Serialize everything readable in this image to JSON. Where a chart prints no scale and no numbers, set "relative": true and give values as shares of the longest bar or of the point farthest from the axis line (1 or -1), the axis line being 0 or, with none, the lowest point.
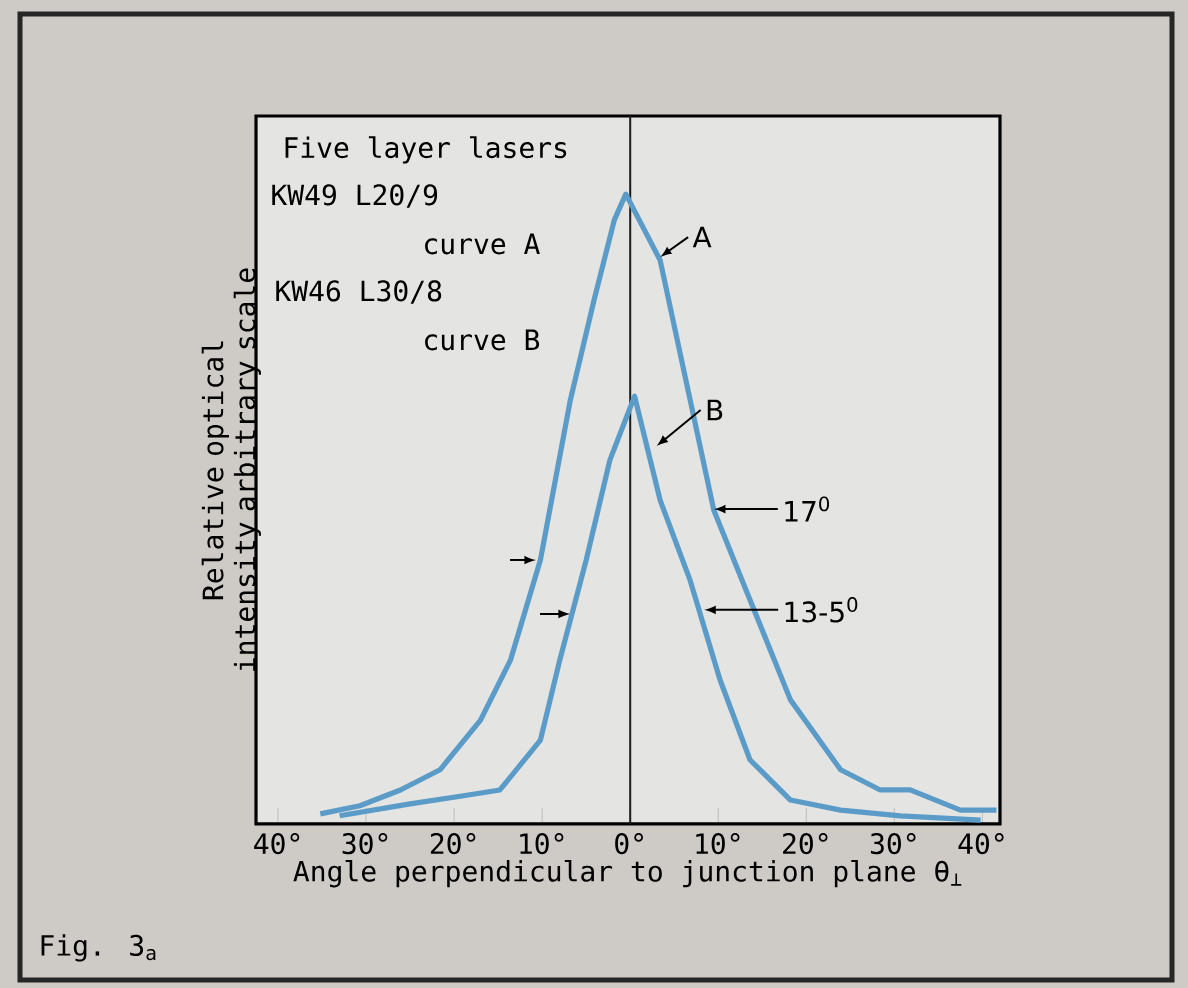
{
  "chart_data": {
    "type": "line",
    "relative": true,
    "ylabel": "Relative optical intensity arbitrary scale",
    "xlabel": "Angle perpendicular to junction plane θ$_{⊥}$",
    "xlim": [
      -42.5,
      42
    ],
    "xticks": [
      {
        "value": -40,
        "label": "40°"
      },
      {
        "value": -30,
        "label": "30°"
      },
      {
        "value": -20,
        "label": "20°"
      },
      {
        "value": -10,
        "label": "10°"
      },
      {
        "value": 0,
        "label": "0°"
      },
      {
        "value": 10,
        "label": "10°"
      },
      {
        "value": 20,
        "label": "20°"
      },
      {
        "value": 30,
        "label": "30°"
      },
      {
        "value": 40,
        "label": "40°"
      }
    ],
    "ref_lines": [
      {
        "axis": "x",
        "value": 0,
        "color": "#1a1a1a"
      }
    ],
    "series": [
      {
        "color": "#5b9bc8",
        "x": [
          -35.2,
          -30.7,
          -26.1,
          -21.6,
          -17.0,
          -13.6,
          -10.2,
          -6.8,
          -4.1,
          -1.8,
          -0.5,
          3.4,
          9.5,
          13.6,
          18.2,
          23.9,
          28.4,
          31.8,
          37.5,
          41.6
        ],
        "values": [
          0.016,
          0.029,
          0.054,
          0.086,
          0.165,
          0.26,
          0.419,
          0.673,
          0.832,
          0.959,
          1.0,
          0.895,
          0.498,
          0.356,
          0.197,
          0.086,
          0.054,
          0.054,
          0.022,
          0.022
        ]
      },
      {
        "color": "#5b9bc8",
        "x": [
          -33,
          -25,
          -19.3,
          -14.8,
          -10.2,
          -8.0,
          -5.0,
          -2.3,
          0.5,
          3.4,
          6.8,
          10.2,
          13.6,
          18.2,
          23.9,
          30.7,
          39.8
        ],
        "values": [
          0.013,
          0.032,
          0.044,
          0.054,
          0.133,
          0.26,
          0.419,
          0.578,
          0.679,
          0.514,
          0.387,
          0.229,
          0.102,
          0.038,
          0.022,
          0.013,
          0.006
        ]
      }
    ],
    "annotations": [
      "Five layer lasers",
      "KW49 L20/9",
      "curve A",
      "KW46 L30/8",
      "curve B",
      {
        "text": "A",
        "x": 3.4,
        "y": 0.9
      },
      {
        "text": "B",
        "x": 3,
        "y": 0.6
      },
      {
        "text": "17$^{0}$",
        "x": 9.5,
        "y": 0.5
      },
      {
        "text": "13-5$^{0}$",
        "x": 8.4,
        "y": 0.34
      },
      "Fig. 3$_{a}$"
    ]
  }
}
